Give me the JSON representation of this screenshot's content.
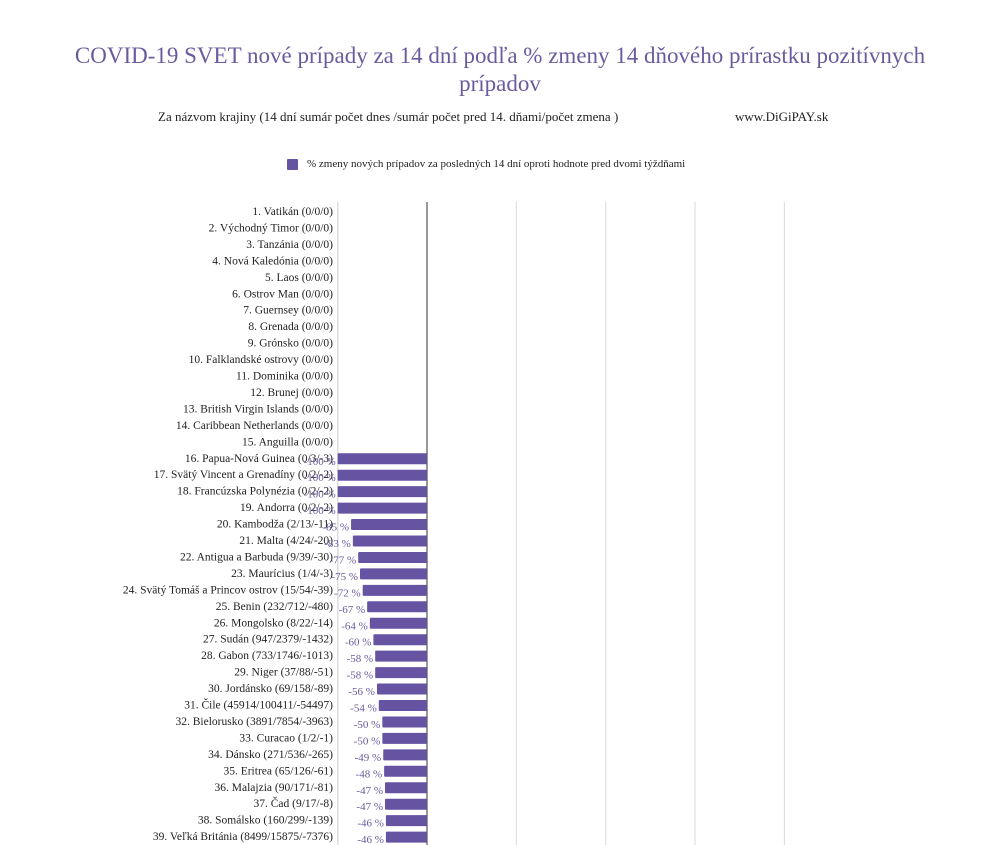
{
  "chart_data": {
    "type": "bar",
    "orientation": "horizontal",
    "title": "COVID-19 SVET nové prípady za 14 dní  podľa % zmeny 14 dňového prírastku pozitívnych prípadov",
    "subtitle": "Za názvom krajiny (14 dní sumár počet dnes /sumár počet pred 14. dňami/počet zmena )",
    "source": "www.DiGiPAY.sk",
    "legend": "top",
    "grid": true,
    "xlim": [
      -100,
      400
    ],
    "series": [
      {
        "name": "% zmeny nových prípadov za posledných 14 dní oproti hodnote pred dvomi týždňami",
        "color": "#6654a3"
      }
    ],
    "categories": [
      "1. Vatikán (0/0/0)",
      "2. Východný Timor (0/0/0)",
      "3. Tanzánia (0/0/0)",
      "4. Nová Kaledónia (0/0/0)",
      "5. Laos (0/0/0)",
      "6. Ostrov Man (0/0/0)",
      "7. Guernsey (0/0/0)",
      "8. Grenada (0/0/0)",
      "9. Grónsko (0/0/0)",
      "10. Falklandské ostrovy (0/0/0)",
      "11. Dominika (0/0/0)",
      "12. Brunej (0/0/0)",
      "13. British Virgin Islands (0/0/0)",
      "14. Caribbean Netherlands (0/0/0)",
      "15. Anguilla (0/0/0)",
      "16. Papua-Nová Guinea (0/3/-3)",
      "17. Svätý Vincent a Grenadíny (0/2/-2)",
      "18. Francúzska Polynézia (0/2/-2)",
      "19. Andorra (0/2/-2)",
      "20. Kambodža (2/13/-11)",
      "21. Malta (4/24/-20)",
      "22. Antigua a Barbuda (9/39/-30)",
      "23. Maurícius (1/4/-3)",
      "24. Svätý Tomáš a Princov ostrov (15/54/-39)",
      "25. Benin (232/712/-480)",
      "26. Mongolsko (8/22/-14)",
      "27. Sudán (947/2379/-1432)",
      "28. Gabon (733/1746/-1013)",
      "29. Niger (37/88/-51)",
      "30. Jordánsko (69/158/-89)",
      "31. Čile (45914/100411/-54497)",
      "32. Bielorusko (3891/7854/-3963)",
      "33. Curacao (1/2/-1)",
      "34. Dánsko (271/536/-265)",
      "35. Eritrea (65/126/-61)",
      "36. Malajzia (90/171/-81)",
      "37. Čad (9/17/-8)",
      "38. Somálsko (160/299/-139)",
      "39. Veľká Británia (8499/15875/-7376)"
    ],
    "values": [
      null,
      null,
      null,
      null,
      null,
      null,
      null,
      null,
      null,
      null,
      null,
      null,
      null,
      null,
      null,
      -100,
      -100,
      -100,
      -100,
      -85,
      -83,
      -77,
      -75,
      -72,
      -67,
      -64,
      -60,
      -58,
      -58,
      -56,
      -54,
      -50,
      -50,
      -49,
      -48,
      -47,
      -47,
      -46,
      -46
    ],
    "labels": [
      "",
      "",
      "",
      "",
      "",
      "",
      "",
      "",
      "",
      "",
      "",
      "",
      "",
      "",
      "",
      "-100 %",
      "-100 %",
      "-100 %",
      "-100 %",
      "-85 %",
      "-83 %",
      "-77 %",
      "-75 %",
      "-72 %",
      "-67 %",
      "-64 %",
      "-60 %",
      "-58 %",
      "-58 %",
      "-56 %",
      "-54 %",
      "-50 %",
      "-50 %",
      "-49 %",
      "-48 %",
      "-47 %",
      "-47 %",
      "-46 %",
      "-46 %"
    ]
  }
}
